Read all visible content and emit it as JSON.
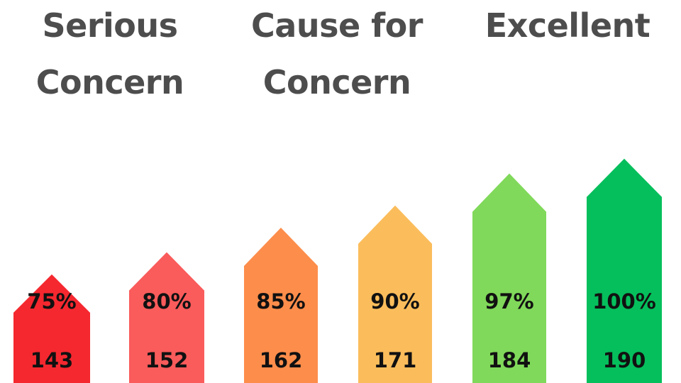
{
  "headings": {
    "serious": [
      "Serious",
      "Concern"
    ],
    "cause": [
      "Cause for",
      "Concern"
    ],
    "excellent": [
      "Excellent"
    ]
  },
  "colors": {
    "heading": "#4d4d4d",
    "text": "#111111"
  },
  "chart_data": {
    "type": "bar",
    "bar_shape": "upward-arrow",
    "grid": false,
    "legend": "none",
    "categories": [
      "75%",
      "80%",
      "85%",
      "90%",
      "97%",
      "100%"
    ],
    "values": [
      143,
      152,
      162,
      171,
      184,
      190
    ],
    "colors": [
      "#f5282f",
      "#fa5b5b",
      "#fd8d4b",
      "#fbbd5b",
      "#80d95a",
      "#05bf5c"
    ],
    "groups": [
      {
        "label": "Serious Concern",
        "categories": [
          "75%",
          "80%"
        ]
      },
      {
        "label": "Cause for Concern",
        "categories": [
          "85%",
          "90%"
        ]
      },
      {
        "label": "Excellent",
        "categories": [
          "97%",
          "100%"
        ]
      }
    ]
  }
}
